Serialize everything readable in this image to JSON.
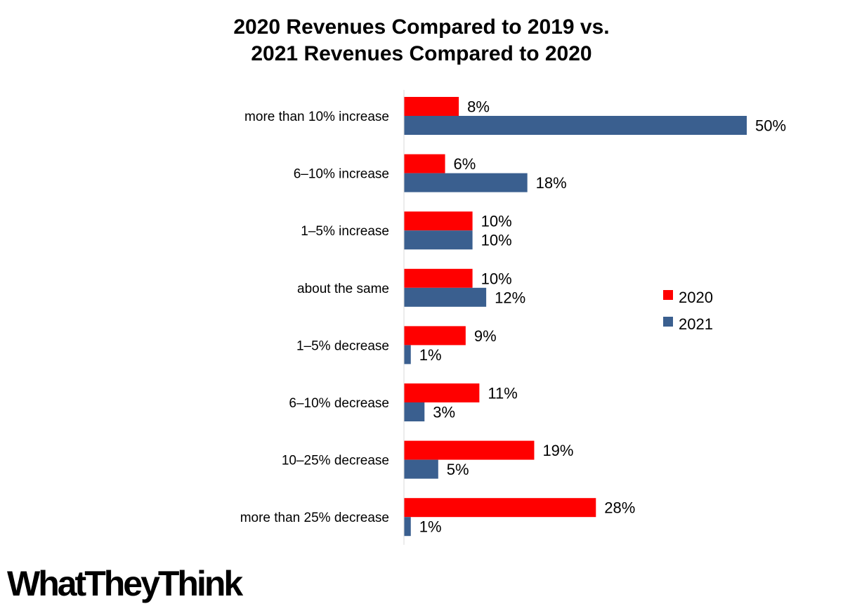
{
  "chart_data": {
    "type": "bar",
    "orientation": "horizontal",
    "title": [
      "2020 Revenues Compared to 2019 vs.",
      "2021 Revenues Compared to 2020"
    ],
    "categories": [
      "more than 10% increase",
      "6–10% increase",
      "1–5% increase",
      "about the same",
      "1–5% decrease",
      "6–10% decrease",
      "10–25% decrease",
      "more than 25% decrease"
    ],
    "series": [
      {
        "name": "2020",
        "color": "#ff0000",
        "values": [
          8,
          6,
          10,
          10,
          9,
          11,
          19,
          28
        ],
        "labels": [
          "8%",
          "6%",
          "10%",
          "10%",
          "9%",
          "11%",
          "19%",
          "28%"
        ]
      },
      {
        "name": "2021",
        "color": "#3a5f8f",
        "values": [
          50,
          18,
          10,
          12,
          1,
          3,
          5,
          1
        ],
        "labels": [
          "50%",
          "18%",
          "10%",
          "12%",
          "1%",
          "3%",
          "5%",
          "1%"
        ]
      }
    ],
    "xlim": [
      0,
      50
    ],
    "grid": false,
    "legend": "right",
    "unit": "%"
  },
  "branding": {
    "logo": "WhatTheyThink"
  }
}
